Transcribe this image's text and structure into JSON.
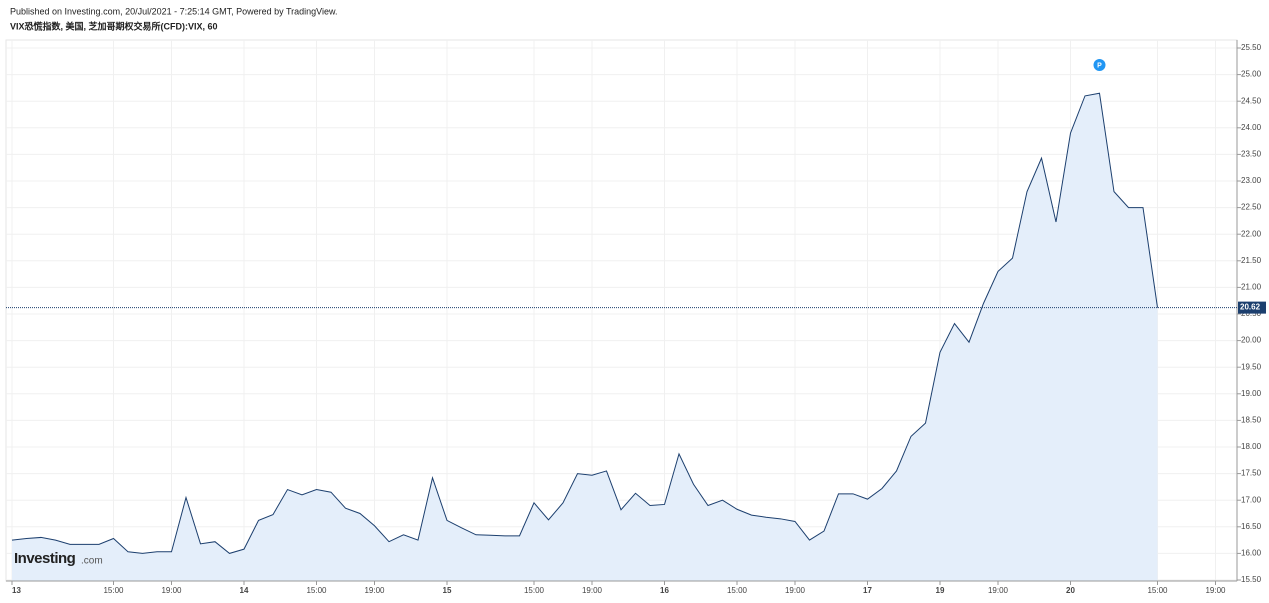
{
  "header": {
    "published": "Published on Investing.com, 20/Jul/2021 - 7:25:14 GMT, Powered by TradingView.",
    "symbol": "VIX恐慌指数, 美国, 芝加哥期权交易所(CFD):VIX, 60"
  },
  "logo": {
    "brand": "Investing",
    "suffix": ".com"
  },
  "chart_data": {
    "type": "area",
    "categories": [
      "13",
      null,
      null,
      null,
      null,
      null,
      null,
      "15:00",
      null,
      null,
      null,
      "19:00",
      null,
      null,
      null,
      null,
      "14",
      null,
      null,
      null,
      null,
      "15:00",
      null,
      null,
      null,
      "19:00",
      null,
      null,
      null,
      null,
      "15",
      null,
      null,
      null,
      null,
      null,
      "15:00",
      null,
      null,
      null,
      "19:00",
      null,
      null,
      null,
      null,
      "16",
      null,
      null,
      null,
      null,
      "15:00",
      null,
      null,
      null,
      "19:00",
      null,
      null,
      null,
      null,
      "17",
      null,
      null,
      null,
      null,
      "19",
      null,
      null,
      null,
      "19:00",
      null,
      null,
      null,
      null,
      "20",
      null,
      null,
      null,
      null,
      null,
      "15:00",
      null,
      null,
      null,
      "19:00"
    ],
    "series": [
      {
        "name": "VIX",
        "color": "#1c3f6e",
        "fill": "#e4eefa",
        "values": [
          16.25,
          16.28,
          16.3,
          16.25,
          16.17,
          16.17,
          16.17,
          16.28,
          16.03,
          16.0,
          16.03,
          16.03,
          17.05,
          16.18,
          16.22,
          16.0,
          16.08,
          16.62,
          16.73,
          17.2,
          17.1,
          17.2,
          17.15,
          16.85,
          16.75,
          16.52,
          16.22,
          16.35,
          16.25,
          17.42,
          16.62,
          16.48,
          16.35,
          16.34,
          16.33,
          16.33,
          16.95,
          16.63,
          16.95,
          17.5,
          17.47,
          17.55,
          16.82,
          17.13,
          16.9,
          16.92,
          17.87,
          17.3,
          16.9,
          17.0,
          16.83,
          16.72,
          16.68,
          16.65,
          16.6,
          16.25,
          16.42,
          17.12,
          17.12,
          17.02,
          17.22,
          17.55,
          18.2,
          18.45,
          19.78,
          20.32,
          19.97,
          20.7,
          21.3,
          21.55,
          22.8,
          23.43,
          22.23,
          23.9,
          24.6,
          24.65,
          22.8,
          22.5,
          22.5,
          20.62,
          null,
          null,
          null,
          null
        ]
      }
    ],
    "last_value": 20.62,
    "marker_label": "P",
    "ylim": [
      15.5,
      25.5
    ],
    "yticks": [
      {
        "value": 15.5,
        "label": "15.50"
      },
      {
        "value": 16,
        "label": "16.00"
      },
      {
        "value": 16.5,
        "label": "16.50"
      },
      {
        "value": 17,
        "label": "17.00"
      },
      {
        "value": 17.5,
        "label": "17.50"
      },
      {
        "value": 18,
        "label": "18.00"
      },
      {
        "value": 18.5,
        "label": "18.50"
      },
      {
        "value": 19,
        "label": "19.00"
      },
      {
        "value": 19.5,
        "label": "19.50"
      },
      {
        "value": 20,
        "label": "20.00"
      },
      {
        "value": 20.5,
        "label": "20.50"
      },
      {
        "value": 21,
        "label": "21.00"
      },
      {
        "value": 21.5,
        "label": "21.50"
      },
      {
        "value": 22,
        "label": "22.00"
      },
      {
        "value": 22.5,
        "label": "22.50"
      },
      {
        "value": 23,
        "label": "23.00"
      },
      {
        "value": 23.5,
        "label": "23.50"
      },
      {
        "value": 24,
        "label": "24.00"
      },
      {
        "value": 24.5,
        "label": "24.50"
      },
      {
        "value": 25,
        "label": "25.00"
      },
      {
        "value": 25.5,
        "label": "25.50"
      }
    ],
    "grid": true
  }
}
